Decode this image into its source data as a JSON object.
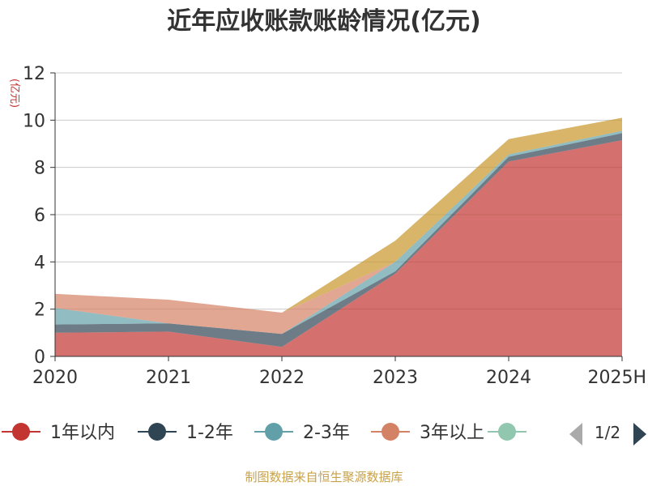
{
  "chart_data": {
    "type": "area",
    "title": "近年应收账款账龄情况(亿元)",
    "ylabel": "(亿元)",
    "xlabel": "",
    "categories": [
      "2020",
      "2021",
      "2022",
      "2023",
      "2024",
      "2025H"
    ],
    "ylim": [
      0,
      12
    ],
    "yticks": [
      0,
      2,
      4,
      6,
      8,
      10,
      12
    ],
    "stacked": true,
    "grid": true,
    "series": [
      {
        "name": "1年以内",
        "color": "#c23531",
        "values": [
          1.0,
          1.05,
          0.4,
          3.5,
          8.25,
          9.15
        ]
      },
      {
        "name": "1-2年",
        "color": "#2f4554",
        "values": [
          0.35,
          0.35,
          0.55,
          0.1,
          0.2,
          0.3
        ]
      },
      {
        "name": "2-3年",
        "color": "#61a0a8",
        "values": [
          0.7,
          0.0,
          0.0,
          0.4,
          0.1,
          0.1
        ]
      },
      {
        "name": "3年以上",
        "color": "#d48265",
        "values": [
          0.6,
          1.0,
          0.9,
          0.0,
          0.0,
          0.0
        ]
      },
      {
        "name": "",
        "color": "#c8962a",
        "values": [
          0.0,
          0.0,
          0.0,
          0.9,
          0.65,
          0.55
        ]
      }
    ],
    "legend": {
      "position": "bottom",
      "items": [
        {
          "name": "1年以内",
          "color": "#c23531"
        },
        {
          "name": "1-2年",
          "color": "#2f4554"
        },
        {
          "name": "2-3年",
          "color": "#61a0a8"
        },
        {
          "name": "3年以上",
          "color": "#d48265"
        },
        {
          "name": "",
          "color": "#91c7ae"
        }
      ],
      "page": "1/2"
    }
  },
  "source": "制图数据来自恒生聚源数据库"
}
